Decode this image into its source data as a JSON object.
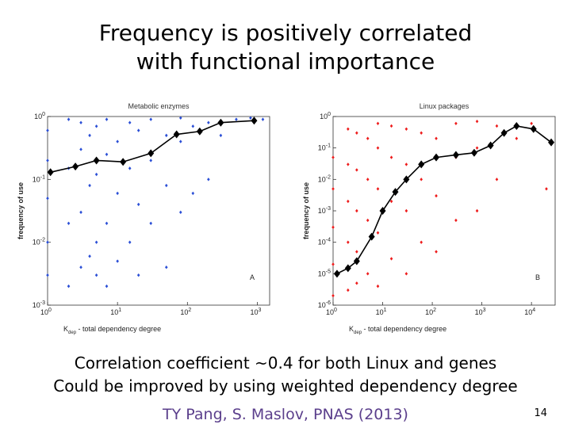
{
  "slide": {
    "title_line1": "Frequency is positively correlated",
    "title_line2": "with functional importance",
    "caption_line1": "Correlation coefficient ~0.4 for both Linux and genes",
    "caption_line2": "Could be improved by using weighted dependency degree",
    "citation": "TY Pang, S. Maslov, PNAS  (2013)",
    "page_number": "14"
  },
  "colors": {
    "metabolic": "#2b4fd6",
    "linux": "#ee1c1c",
    "trend": "#000000",
    "citation": "#5b3f8c"
  },
  "chart_data": [
    {
      "type": "scatter",
      "title": "Metabolic enzymes",
      "panel_label": "A",
      "xlabel_main": "K",
      "xlabel_sub": "dep",
      "xlabel_rest": " - total dependency degree",
      "ylabel": "frequency of use",
      "xscale": "log",
      "yscale": "log",
      "xlim": [
        1,
        1500
      ],
      "ylim": [
        0.001,
        1
      ],
      "xticks": [
        {
          "v": 1,
          "b": "10",
          "e": "0"
        },
        {
          "v": 10,
          "b": "10",
          "e": "1"
        },
        {
          "v": 100,
          "b": "10",
          "e": "2"
        },
        {
          "v": 1000,
          "b": "10",
          "e": "3"
        }
      ],
      "yticks": [
        {
          "v": 1,
          "b": "10",
          "e": "0"
        },
        {
          "v": 0.1,
          "b": "10",
          "e": "-1"
        },
        {
          "v": 0.01,
          "b": "10",
          "e": "-2"
        },
        {
          "v": 0.001,
          "b": "10",
          "e": "-3"
        }
      ],
      "color": "#2b4fd6",
      "series": [
        {
          "kind": "scatter",
          "points": [
            [
              1,
              0.003
            ],
            [
              1,
              0.01
            ],
            [
              1,
              0.05
            ],
            [
              1,
              0.2
            ],
            [
              1,
              0.6
            ],
            [
              2,
              0.002
            ],
            [
              2,
              0.02
            ],
            [
              2,
              0.15
            ],
            [
              2,
              0.9
            ],
            [
              3,
              0.004
            ],
            [
              3,
              0.03
            ],
            [
              3,
              0.3
            ],
            [
              3,
              0.8
            ],
            [
              4,
              0.006
            ],
            [
              4,
              0.08
            ],
            [
              4,
              0.5
            ],
            [
              5,
              0.003
            ],
            [
              5,
              0.01
            ],
            [
              5,
              0.12
            ],
            [
              5,
              0.7
            ],
            [
              7,
              0.002
            ],
            [
              7,
              0.02
            ],
            [
              7,
              0.25
            ],
            [
              7,
              0.9
            ],
            [
              10,
              0.005
            ],
            [
              10,
              0.06
            ],
            [
              10,
              0.4
            ],
            [
              15,
              0.01
            ],
            [
              15,
              0.15
            ],
            [
              15,
              0.8
            ],
            [
              20,
              0.003
            ],
            [
              20,
              0.04
            ],
            [
              20,
              0.6
            ],
            [
              30,
              0.02
            ],
            [
              30,
              0.2
            ],
            [
              30,
              0.9
            ],
            [
              50,
              0.004
            ],
            [
              50,
              0.08
            ],
            [
              50,
              0.5
            ],
            [
              80,
              0.03
            ],
            [
              80,
              0.4
            ],
            [
              80,
              0.95
            ],
            [
              120,
              0.06
            ],
            [
              120,
              0.7
            ],
            [
              200,
              0.1
            ],
            [
              200,
              0.8
            ],
            [
              300,
              0.5
            ],
            [
              500,
              0.9
            ],
            [
              800,
              0.95
            ],
            [
              1200,
              0.9
            ]
          ]
        },
        {
          "kind": "binned_average",
          "name": "",
          "points": [
            [
              1.1,
              0.13
            ],
            [
              2.5,
              0.16
            ],
            [
              5,
              0.2
            ],
            [
              12,
              0.19
            ],
            [
              30,
              0.26
            ],
            [
              70,
              0.52
            ],
            [
              150,
              0.58
            ],
            [
              300,
              0.8
            ],
            [
              900,
              0.86
            ]
          ]
        }
      ]
    },
    {
      "type": "scatter",
      "title": "Linux packages",
      "panel_label": "B",
      "xlabel_main": "K",
      "xlabel_sub": "dep",
      "xlabel_rest": " - total dependency degree",
      "ylabel": "frequency of use",
      "xscale": "log",
      "yscale": "log",
      "xlim": [
        1,
        30000
      ],
      "ylim": [
        1e-06,
        1
      ],
      "xticks": [
        {
          "v": 1,
          "b": "10",
          "e": "0"
        },
        {
          "v": 10,
          "b": "10",
          "e": "1"
        },
        {
          "v": 100,
          "b": "10",
          "e": "2"
        },
        {
          "v": 1000,
          "b": "10",
          "e": "3"
        },
        {
          "v": 10000,
          "b": "10",
          "e": "4"
        }
      ],
      "yticks": [
        {
          "v": 1,
          "b": "10",
          "e": "0"
        },
        {
          "v": 0.1,
          "b": "10",
          "e": "-1"
        },
        {
          "v": 0.01,
          "b": "10",
          "e": "-2"
        },
        {
          "v": 0.001,
          "b": "10",
          "e": "-3"
        },
        {
          "v": 0.0001,
          "b": "10",
          "e": "-4"
        },
        {
          "v": 1e-05,
          "b": "10",
          "e": "-5"
        },
        {
          "v": 1e-06,
          "b": "10",
          "e": "-6"
        }
      ],
      "color": "#ee1c1c",
      "series": [
        {
          "kind": "scatter",
          "points": [
            [
              1,
              2e-06
            ],
            [
              1,
              2e-05
            ],
            [
              1,
              0.0003
            ],
            [
              1,
              0.005
            ],
            [
              1,
              0.05
            ],
            [
              2,
              3e-06
            ],
            [
              2,
              0.0001
            ],
            [
              2,
              0.002
            ],
            [
              2,
              0.03
            ],
            [
              2,
              0.4
            ],
            [
              3,
              5e-06
            ],
            [
              3,
              5e-05
            ],
            [
              3,
              0.001
            ],
            [
              3,
              0.02
            ],
            [
              3,
              0.3
            ],
            [
              5,
              1e-05
            ],
            [
              5,
              0.0005
            ],
            [
              5,
              0.01
            ],
            [
              5,
              0.2
            ],
            [
              8,
              4e-06
            ],
            [
              8,
              0.0002
            ],
            [
              8,
              0.005
            ],
            [
              8,
              0.1
            ],
            [
              8,
              0.6
            ],
            [
              15,
              3e-05
            ],
            [
              15,
              0.002
            ],
            [
              15,
              0.05
            ],
            [
              15,
              0.5
            ],
            [
              30,
              1e-05
            ],
            [
              30,
              0.001
            ],
            [
              30,
              0.03
            ],
            [
              30,
              0.4
            ],
            [
              60,
              0.0001
            ],
            [
              60,
              0.01
            ],
            [
              60,
              0.3
            ],
            [
              120,
              5e-05
            ],
            [
              120,
              0.003
            ],
            [
              120,
              0.2
            ],
            [
              300,
              0.0005
            ],
            [
              300,
              0.05
            ],
            [
              300,
              0.6
            ],
            [
              800,
              0.001
            ],
            [
              800,
              0.1
            ],
            [
              800,
              0.7
            ],
            [
              2000,
              0.01
            ],
            [
              2000,
              0.5
            ],
            [
              5000,
              0.2
            ],
            [
              10000,
              0.6
            ],
            [
              20000,
              0.005
            ]
          ]
        },
        {
          "kind": "binned_average",
          "name": "",
          "points": [
            [
              1.2,
              1e-05
            ],
            [
              2,
              1.5e-05
            ],
            [
              3,
              2.5e-05
            ],
            [
              6,
              0.00015
            ],
            [
              10,
              0.001
            ],
            [
              18,
              0.004
            ],
            [
              30,
              0.01
            ],
            [
              60,
              0.03
            ],
            [
              120,
              0.05
            ],
            [
              300,
              0.06
            ],
            [
              700,
              0.07
            ],
            [
              1500,
              0.12
            ],
            [
              2800,
              0.3
            ],
            [
              5000,
              0.5
            ],
            [
              11000,
              0.4
            ],
            [
              25000,
              0.15
            ]
          ]
        }
      ]
    }
  ]
}
